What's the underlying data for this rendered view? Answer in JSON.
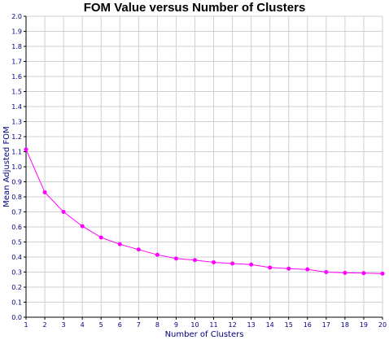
{
  "chart_data": {
    "type": "line",
    "title": "FOM Value versus Number of Clusters",
    "xlabel": "Number of Clusters",
    "ylabel": "Mean Adjusted FOM",
    "xlim": [
      1,
      20
    ],
    "ylim": [
      0,
      2.0
    ],
    "x_ticks": [
      "1",
      "2",
      "3",
      "4",
      "5",
      "6",
      "7",
      "8",
      "9",
      "10",
      "11",
      "12",
      "13",
      "14",
      "15",
      "16",
      "17",
      "18",
      "19",
      "20"
    ],
    "y_ticks": [
      "0.0",
      "0.1",
      "0.2",
      "0.3",
      "0.4",
      "0.5",
      "0.6",
      "0.7",
      "0.8",
      "0.9",
      "1.0",
      "1.1",
      "1.2",
      "1.3",
      "1.4",
      "1.5",
      "1.6",
      "1.7",
      "1.8",
      "1.9",
      "2.0"
    ],
    "grid": true,
    "series": [
      {
        "color": "#ff00ff",
        "x": [
          1,
          2,
          3,
          4,
          5,
          6,
          7,
          8,
          9,
          10,
          11,
          12,
          13,
          14,
          15,
          16,
          17,
          18,
          19,
          20
        ],
        "values": [
          1.115,
          0.83,
          0.7,
          0.605,
          0.53,
          0.485,
          0.45,
          0.415,
          0.39,
          0.38,
          0.365,
          0.357,
          0.35,
          0.33,
          0.323,
          0.318,
          0.3,
          0.295,
          0.293,
          0.29
        ]
      }
    ]
  }
}
